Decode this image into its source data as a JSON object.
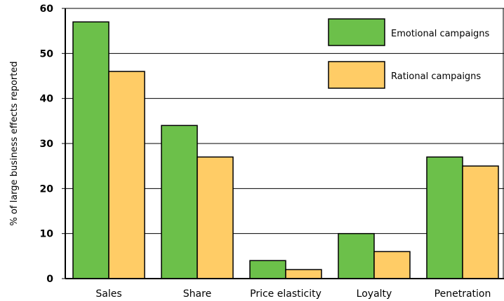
{
  "chart_data": {
    "type": "bar",
    "title": "",
    "xlabel": "",
    "ylabel": "% of large business effects reported",
    "ylim": [
      0,
      60
    ],
    "yticks": [
      0,
      10,
      20,
      30,
      40,
      50,
      60
    ],
    "grid": true,
    "legend_position": "top-right",
    "categories": [
      "Sales",
      "Share",
      "Price elasticity",
      "Loyalty",
      "Penetration"
    ],
    "series": [
      {
        "name": "Emotional campaigns",
        "color": "#6cc04a",
        "values": [
          57,
          34,
          4,
          10,
          27
        ]
      },
      {
        "name": "Rational campaigns",
        "color": "#ffcc66",
        "values": [
          46,
          27,
          2,
          6,
          25
        ]
      }
    ]
  }
}
